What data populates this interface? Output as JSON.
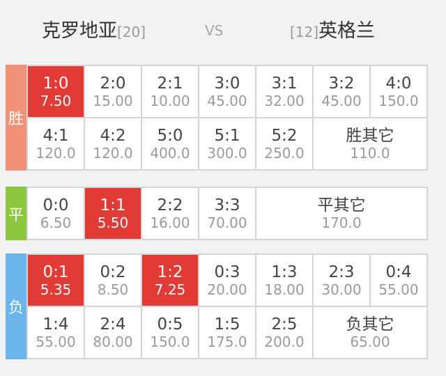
{
  "match": {
    "home_team": "克罗地亚",
    "home_rank": "[20]",
    "vs": "VS",
    "away_rank": "[12]",
    "away_team": "英格兰"
  },
  "sections": [
    {
      "label": "胜",
      "color": "#f29078",
      "rows": [
        [
          {
            "score": "1:0",
            "odds": "7.50",
            "highlight": true
          },
          {
            "score": "2:0",
            "odds": "15.00"
          },
          {
            "score": "2:1",
            "odds": "10.00"
          },
          {
            "score": "3:0",
            "odds": "45.00"
          },
          {
            "score": "3:1",
            "odds": "32.00"
          },
          {
            "score": "3:2",
            "odds": "45.00"
          },
          {
            "score": "4:0",
            "odds": "150.0"
          }
        ],
        [
          {
            "score": "4:1",
            "odds": "120.0"
          },
          {
            "score": "4:2",
            "odds": "120.0"
          },
          {
            "score": "5:0",
            "odds": "400.0"
          },
          {
            "score": "5:1",
            "odds": "300.0"
          },
          {
            "score": "5:2",
            "odds": "250.0"
          },
          {
            "score": "胜其它",
            "odds": "110.0",
            "span": 2
          }
        ]
      ]
    },
    {
      "label": "平",
      "color": "#8cc63f",
      "rows": [
        [
          {
            "score": "0:0",
            "odds": "6.50"
          },
          {
            "score": "1:1",
            "odds": "5.50",
            "highlight": true
          },
          {
            "score": "2:2",
            "odds": "16.00"
          },
          {
            "score": "3:3",
            "odds": "70.00"
          },
          {
            "score": "平其它",
            "odds": "170.0",
            "span": 3
          }
        ]
      ]
    },
    {
      "label": "负",
      "color": "#6cb4ec",
      "rows": [
        [
          {
            "score": "0:1",
            "odds": "5.35",
            "highlight": true
          },
          {
            "score": "0:2",
            "odds": "8.50"
          },
          {
            "score": "1:2",
            "odds": "7.25",
            "highlight": true
          },
          {
            "score": "0:3",
            "odds": "20.00"
          },
          {
            "score": "1:3",
            "odds": "18.00"
          },
          {
            "score": "2:3",
            "odds": "30.00"
          },
          {
            "score": "0:4",
            "odds": "55.00"
          }
        ],
        [
          {
            "score": "1:4",
            "odds": "55.00"
          },
          {
            "score": "2:4",
            "odds": "80.00"
          },
          {
            "score": "0:5",
            "odds": "150.0"
          },
          {
            "score": "1:5",
            "odds": "175.0"
          },
          {
            "score": "2:5",
            "odds": "200.0"
          },
          {
            "score": "负其它",
            "odds": "65.00",
            "span": 2
          }
        ]
      ]
    }
  ]
}
